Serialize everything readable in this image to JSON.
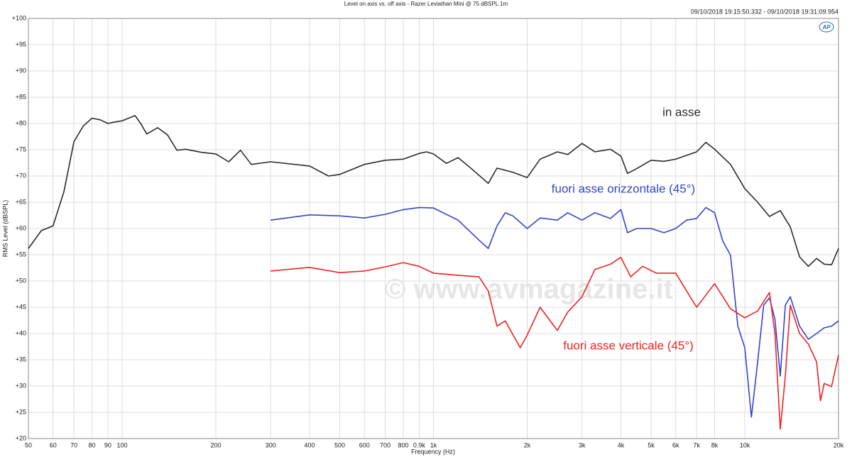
{
  "chart_data": {
    "type": "line",
    "title": "Level on axis vs. off axis - Razer Leviathan Mini @ 75 dBSPL 1m",
    "subtitle": "09/10/2018 19:15:50.332 - 09/10/2018 19:31:09.954",
    "logo": "AP",
    "watermark": "© www.avmagazine.it",
    "x_label": "Frequency (Hz)",
    "y_label": "RMS Level (dBSPL)",
    "xscale": "log",
    "grid": true,
    "xlim": [
      50,
      20000
    ],
    "ylim": [
      20,
      100
    ],
    "xticks": [
      50,
      60,
      70,
      80,
      90,
      100,
      200,
      300,
      400,
      500,
      600,
      700,
      800,
      {
        "value": 900,
        "label": "0.9k"
      },
      {
        "value": 1000,
        "label": "1k"
      },
      {
        "value": 2000,
        "label": "2k"
      },
      {
        "value": 3000,
        "label": "3k"
      },
      {
        "value": 4000,
        "label": "4k"
      },
      {
        "value": 5000,
        "label": "5k"
      },
      {
        "value": 6000,
        "label": "6k"
      },
      {
        "value": 7000,
        "label": "7k"
      },
      {
        "value": 8000,
        "label": "8k"
      },
      {
        "value": 10000,
        "label": "10k"
      },
      {
        "value": 20000,
        "label": "20k"
      }
    ],
    "yticks": [
      {
        "value": 20,
        "label": "+20"
      },
      {
        "value": 25,
        "label": "+25"
      },
      {
        "value": 30,
        "label": "+30"
      },
      {
        "value": 35,
        "label": "+35"
      },
      {
        "value": 40,
        "label": "+40"
      },
      {
        "value": 45,
        "label": "+45"
      },
      {
        "value": 50,
        "label": "+50"
      },
      {
        "value": 55,
        "label": "+55"
      },
      {
        "value": 60,
        "label": "+60"
      },
      {
        "value": 65,
        "label": "+65"
      },
      {
        "value": 70,
        "label": "+70"
      },
      {
        "value": 75,
        "label": "+75"
      },
      {
        "value": 80,
        "label": "+80"
      },
      {
        "value": 85,
        "label": "+85"
      },
      {
        "value": 90,
        "label": "+90"
      },
      {
        "value": 95,
        "label": "+95"
      },
      {
        "value": 100,
        "label": "+100"
      }
    ],
    "series": [
      {
        "name": "in asse",
        "color": "#2b2b2b",
        "x": [
          50,
          55,
          60,
          65,
          70,
          75,
          80,
          85,
          90,
          95,
          100,
          110,
          115,
          120,
          130,
          140,
          150,
          160,
          180,
          200,
          220,
          240,
          260,
          300,
          400,
          460,
          500,
          600,
          700,
          800,
          900,
          950,
          1000,
          1100,
          1200,
          1300,
          1500,
          1600,
          1800,
          2000,
          2200,
          2500,
          2700,
          3000,
          3300,
          3700,
          4000,
          4200,
          4500,
          5000,
          5500,
          6000,
          7000,
          7500,
          8000,
          9000,
          10000,
          11000,
          12000,
          13000,
          14000,
          15000,
          16000,
          17000,
          18000,
          19000,
          20000
        ],
        "values": [
          56.2,
          59.6,
          60.5,
          67,
          76.5,
          79.5,
          81,
          80.7,
          80,
          80.3,
          80.5,
          81.5,
          79.9,
          78,
          79.2,
          77.8,
          74.9,
          75.1,
          74.5,
          74.2,
          72.7,
          74.9,
          72.2,
          72.7,
          71.9,
          70,
          70.3,
          72.2,
          73,
          73.2,
          74.3,
          74.6,
          74.2,
          72.4,
          73.5,
          71.8,
          68.6,
          71.5,
          70.7,
          69.7,
          73.2,
          74.6,
          74.1,
          76.2,
          74.6,
          75.1,
          73.8,
          70.5,
          71.4,
          73,
          72.8,
          73.2,
          74.6,
          76.4,
          75.1,
          72.2,
          67.6,
          65,
          62.3,
          63.4,
          60.3,
          54.6,
          52.8,
          54.3,
          53.2,
          53.1,
          56.2
        ]
      },
      {
        "name": "fuori asse orizzontale (45°)",
        "color": "#3344cc",
        "x": [
          300,
          400,
          500,
          600,
          700,
          800,
          900,
          1000,
          1200,
          1400,
          1500,
          1600,
          1700,
          1800,
          2000,
          2200,
          2500,
          2700,
          3000,
          3300,
          3700,
          4000,
          4200,
          4500,
          5000,
          5500,
          6000,
          6500,
          7000,
          7500,
          8000,
          8500,
          9000,
          9500,
          10000,
          10500,
          11000,
          11500,
          12000,
          12500,
          13000,
          13500,
          14000,
          15000,
          16000,
          17000,
          18000,
          19000,
          20000
        ],
        "values": [
          61.6,
          62.6,
          62.4,
          62,
          62.7,
          63.6,
          64,
          63.9,
          61.6,
          57.8,
          56.2,
          60.5,
          63,
          62.4,
          60,
          62,
          61.6,
          63,
          61.6,
          63,
          61.9,
          63.6,
          59.2,
          60,
          60,
          59.2,
          60,
          61.6,
          61.9,
          64,
          63,
          57.6,
          54.9,
          41.4,
          37.3,
          24.1,
          34.6,
          45.4,
          46.8,
          42.7,
          31.9,
          45.4,
          47,
          41.4,
          38.9,
          40,
          41.1,
          41.4,
          42.4
        ]
      },
      {
        "name": "fuori asse verticale (45°)",
        "color": "#ee2222",
        "x": [
          300,
          400,
          500,
          600,
          700,
          800,
          900,
          1000,
          1200,
          1400,
          1500,
          1600,
          1700,
          1900,
          2000,
          2200,
          2500,
          2700,
          3000,
          3300,
          3700,
          4000,
          4300,
          4700,
          5200,
          6000,
          7000,
          8000,
          9000,
          10000,
          11000,
          12000,
          12500,
          13000,
          13500,
          14000,
          15000,
          16000,
          17000,
          17500,
          18000,
          19000,
          20000
        ],
        "values": [
          51.9,
          52.6,
          51.6,
          51.9,
          52.7,
          53.5,
          52.8,
          51.5,
          51.1,
          50.8,
          48.1,
          41.4,
          42.4,
          37.3,
          39.7,
          45,
          40.6,
          44.1,
          47,
          52.2,
          53.2,
          54.5,
          50.8,
          52.8,
          51.5,
          51.5,
          45,
          49.5,
          44.7,
          43,
          44.3,
          47.8,
          40,
          21.8,
          31.9,
          45.4,
          40,
          38,
          34.6,
          27.2,
          30.5,
          29.9,
          35.9
        ]
      }
    ]
  }
}
